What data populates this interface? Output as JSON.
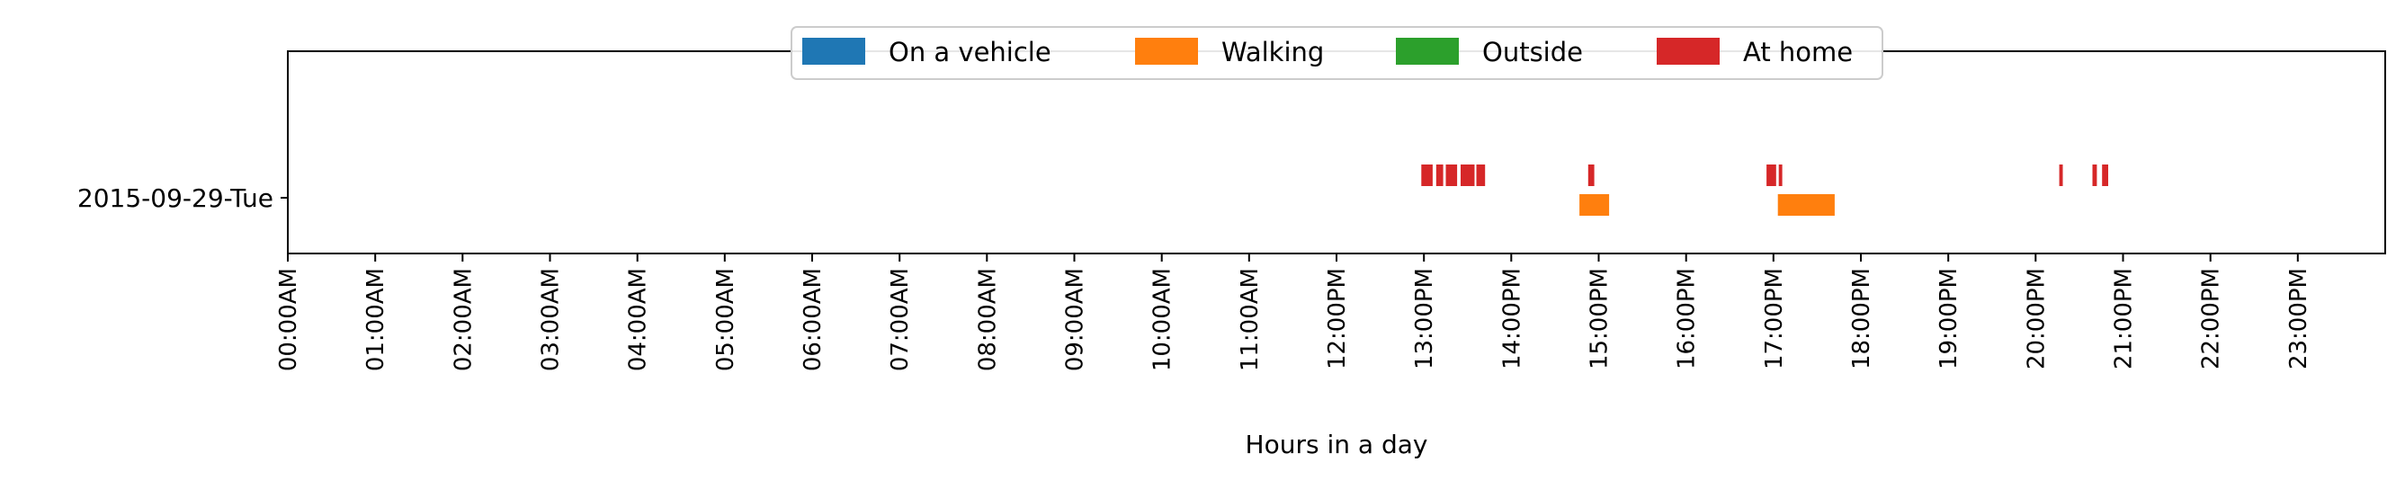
{
  "chart_data": {
    "type": "timeline",
    "xlabel": "Hours in a day",
    "ylabel": "",
    "xlim_hours": [
      0,
      24
    ],
    "x_tick_hours": [
      0,
      1,
      2,
      3,
      4,
      5,
      6,
      7,
      8,
      9,
      10,
      11,
      12,
      13,
      14,
      15,
      16,
      17,
      18,
      19,
      20,
      21,
      22,
      23
    ],
    "x_tick_labels": [
      "00:00AM",
      "01:00AM",
      "02:00AM",
      "03:00AM",
      "04:00AM",
      "05:00AM",
      "06:00AM",
      "07:00AM",
      "08:00AM",
      "09:00AM",
      "10:00AM",
      "11:00AM",
      "12:00PM",
      "13:00PM",
      "14:00PM",
      "15:00PM",
      "16:00PM",
      "17:00PM",
      "18:00PM",
      "19:00PM",
      "20:00PM",
      "21:00PM",
      "22:00PM",
      "23:00PM"
    ],
    "y_labels": [
      "2015-09-29-Tue"
    ],
    "legend_position": "top-center",
    "grid": false,
    "series": [
      {
        "name": "On a vehicle",
        "color": "#1f77b4",
        "intervals": []
      },
      {
        "name": "Walking",
        "color": "#ff7f0e",
        "intervals": [
          {
            "day": "2015-09-29-Tue",
            "start": 14.78,
            "end": 15.12
          },
          {
            "day": "2015-09-29-Tue",
            "start": 17.05,
            "end": 17.7
          }
        ]
      },
      {
        "name": "Outside",
        "color": "#2ca02c",
        "intervals": []
      },
      {
        "name": "At home",
        "color": "#d62728",
        "intervals": [
          {
            "day": "2015-09-29-Tue",
            "start": 12.97,
            "end": 13.1
          },
          {
            "day": "2015-09-29-Tue",
            "start": 13.14,
            "end": 13.22
          },
          {
            "day": "2015-09-29-Tue",
            "start": 13.25,
            "end": 13.38
          },
          {
            "day": "2015-09-29-Tue",
            "start": 13.42,
            "end": 13.58
          },
          {
            "day": "2015-09-29-Tue",
            "start": 13.6,
            "end": 13.7
          },
          {
            "day": "2015-09-29-Tue",
            "start": 14.88,
            "end": 14.95
          },
          {
            "day": "2015-09-29-Tue",
            "start": 16.92,
            "end": 17.03
          },
          {
            "day": "2015-09-29-Tue",
            "start": 17.06,
            "end": 17.1
          },
          {
            "day": "2015-09-29-Tue",
            "start": 20.27,
            "end": 20.31
          },
          {
            "day": "2015-09-29-Tue",
            "start": 20.65,
            "end": 20.7
          },
          {
            "day": "2015-09-29-Tue",
            "start": 20.76,
            "end": 20.83
          }
        ]
      }
    ]
  }
}
